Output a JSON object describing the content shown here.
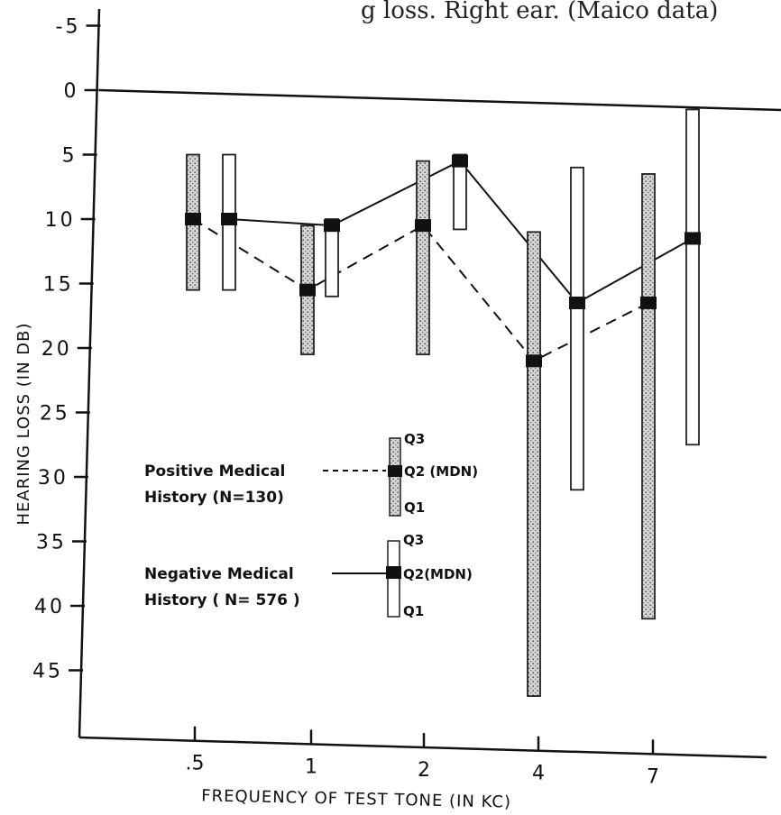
{
  "chart_data": {
    "type": "box",
    "title": "g loss. Right ear. (Maico data)",
    "xlabel": "FREQUENCY OF TEST TONE (IN KC)",
    "ylabel": "HEARING LOSS (IN DB)",
    "categories": [
      ".5",
      "1",
      "2",
      "4",
      "7"
    ],
    "y_ticks": [
      "-5",
      "0",
      "5",
      "10",
      "15",
      "20",
      "25",
      "30",
      "35",
      "40",
      "45"
    ],
    "ylim": [
      -5,
      50
    ],
    "y_inverted": true,
    "series": [
      {
        "name": "Positive Medical History (N=130)",
        "line_style": "dashed",
        "fill": "stippled",
        "q1": [
          5,
          10.5,
          5.5,
          11,
          6.5
        ],
        "median": [
          10,
          15.5,
          10.5,
          21,
          16.5
        ],
        "q3": [
          15.5,
          20.5,
          20.5,
          47,
          41
        ]
      },
      {
        "name": "Negative Medical History (N=576)",
        "line_style": "solid",
        "fill": "open",
        "q1": [
          5,
          10,
          5,
          6,
          1.5
        ],
        "median": [
          10,
          10.5,
          5.5,
          16.5,
          11.5
        ],
        "q3": [
          15.5,
          16,
          10.8,
          31,
          27.5
        ]
      }
    ],
    "legend": {
      "placement": "center-left",
      "positive": {
        "line1": "Positive Medical",
        "line2": "History (N=130)"
      },
      "negative": {
        "line1": "Negative Medical",
        "line2": "History ( N= 576 )"
      },
      "q3_label": "Q3",
      "median_label": "Q2 (MDN)",
      "median_label_neg": "Q2(MDN)",
      "q1_label": "Q1"
    }
  }
}
